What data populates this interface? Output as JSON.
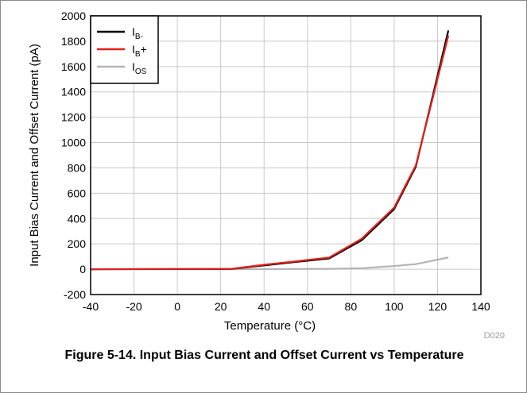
{
  "figure_code": "D020",
  "caption": "Figure 5-14. Input Bias Current and Offset Current vs Temperature",
  "chart_data": {
    "type": "line",
    "xlabel": "Temperature (°C)",
    "ylabel": "Input Bias Current and Offset Current (pA)",
    "xlim": [
      -40,
      140
    ],
    "ylim": [
      -200,
      2000
    ],
    "xticks": [
      -40,
      -20,
      0,
      20,
      40,
      60,
      80,
      100,
      120,
      140
    ],
    "yticks": [
      -200,
      0,
      200,
      400,
      600,
      800,
      1000,
      1200,
      1400,
      1600,
      1800,
      2000
    ],
    "grid": true,
    "legend_position": "top-left",
    "series": [
      {
        "name": "IB-",
        "label_main": "I",
        "label_sub": "B-",
        "label_suffix": "",
        "color": "#000000",
        "x": [
          -40,
          25,
          40,
          55,
          70,
          85,
          100,
          110,
          125
        ],
        "y": [
          0,
          2,
          30,
          58,
          85,
          228,
          475,
          810,
          1885
        ]
      },
      {
        "name": "IB+",
        "label_main": "I",
        "label_sub": "B",
        "label_suffix": "+",
        "color": "#e0201b",
        "x": [
          -40,
          25,
          40,
          55,
          70,
          85,
          100,
          110,
          125
        ],
        "y": [
          0,
          3,
          35,
          63,
          92,
          240,
          487,
          820,
          1845
        ]
      },
      {
        "name": "IOS",
        "label_main": "I",
        "label_sub": "OS",
        "label_suffix": "",
        "color": "#b4b4b4",
        "x": [
          -40,
          25,
          40,
          55,
          70,
          85,
          100,
          110,
          125
        ],
        "y": [
          0,
          0,
          1,
          2,
          3,
          8,
          25,
          40,
          93
        ]
      }
    ]
  }
}
